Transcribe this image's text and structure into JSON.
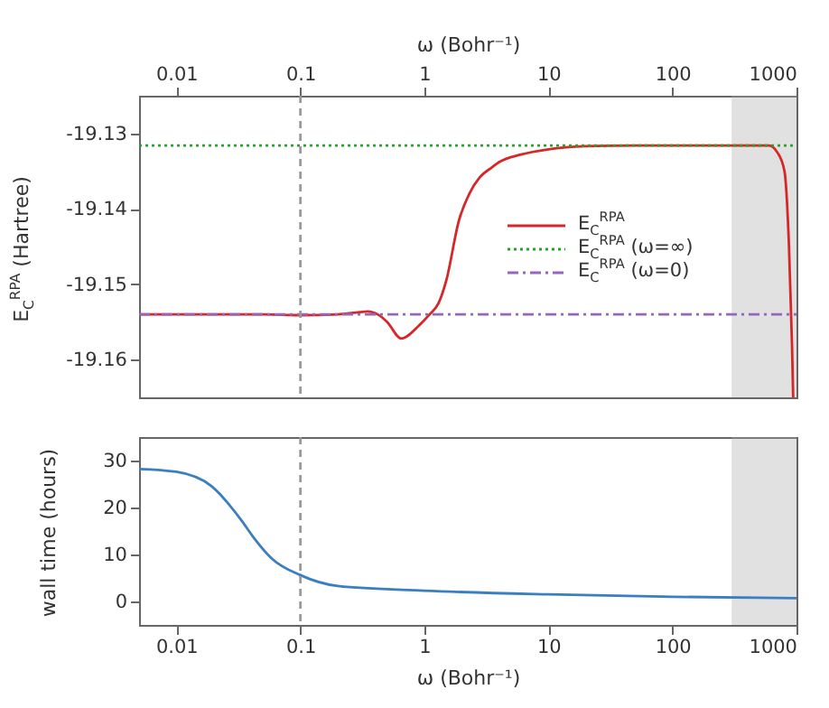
{
  "chart_data": [
    {
      "type": "line",
      "xlabel": "ω (Bohr⁻¹)",
      "ylabel": "E$_{C}$$^{RPA}$ (Hartree)",
      "xlim": [
        0.005,
        1000
      ],
      "xticks": [
        0.01,
        0.1,
        1,
        10,
        100,
        1000
      ],
      "log": "x",
      "ylim": [
        -19.165,
        -19.125
      ],
      "yticks": [
        -19.16,
        -19.15,
        -19.14,
        -19.13
      ],
      "grid": false,
      "legend": "right",
      "series": [
        {
          "name": "E$_{C}$$^{RPA}$",
          "color": "#d62728",
          "line_style": "solid",
          "x": [
            0.005,
            0.05,
            0.1,
            0.2,
            0.3,
            0.35,
            0.42,
            0.5,
            0.65,
            0.9,
            1.1,
            1.3,
            1.5,
            1.9,
            2.3,
            2.8,
            3.5,
            4,
            6,
            10,
            20,
            50,
            600,
            700,
            800,
            870,
            920,
            940
          ],
          "values": [
            -19.154,
            -19.154,
            -19.1541,
            -19.154,
            -19.1537,
            -19.1536,
            -19.154,
            -19.155,
            -19.1572,
            -19.1555,
            -19.154,
            -19.1525,
            -19.1495,
            -19.1415,
            -19.138,
            -19.1358,
            -19.1345,
            -19.1338,
            -19.1328,
            -19.1321,
            -19.1317,
            -19.1316,
            -19.1316,
            -19.1325,
            -19.135,
            -19.145,
            -19.158,
            -19.165
          ]
        },
        {
          "name": "E$_{C}$$^{RPA}$ (ω=∞)",
          "color": "#2ca02c",
          "line_style": "dotted",
          "x": [
            0.005,
            1000
          ],
          "values": [
            -19.1316,
            -19.1316
          ]
        },
        {
          "name": "E$_{C}$$^{RPA}$ (ω=0)",
          "color": "#9467bd",
          "line_style": "dashed",
          "x": [
            0.005,
            1000
          ],
          "values": [
            -19.154,
            -19.154
          ]
        }
      ],
      "ref_lines": [
        {
          "axis": "x",
          "value": 0.1,
          "color": "#999999",
          "line_style": "dashed"
        }
      ],
      "bands": [
        {
          "axis": "x",
          "from": 300,
          "to": 1000,
          "color": "#aaaaaa"
        }
      ]
    },
    {
      "type": "line",
      "xlabel": "ω (Bohr⁻¹)",
      "ylabel": "wall time (hours)",
      "xlim": [
        0.005,
        1000
      ],
      "xticks": [
        0.01,
        0.1,
        1,
        10,
        100,
        1000
      ],
      "log": "x",
      "ylim": [
        -5,
        35
      ],
      "yticks": [
        0,
        10,
        20,
        30
      ],
      "grid": false,
      "series": [
        {
          "color": "#3a7fbf",
          "line_style": "solid",
          "x": [
            0.005,
            0.01,
            0.0193,
            0.0336,
            0.042,
            0.059,
            0.1,
            0.2,
            1,
            10,
            100,
            1000
          ],
          "values": [
            28.2,
            27.6,
            24.5,
            17.2,
            13.6,
            9.1,
            5.6,
            3.3,
            2.3,
            1.5,
            1.0,
            0.7
          ]
        }
      ],
      "ref_lines": [
        {
          "axis": "x",
          "value": 0.1,
          "color": "#999999",
          "line_style": "dashed"
        }
      ],
      "bands": [
        {
          "axis": "x",
          "from": 300,
          "to": 1000,
          "color": "#aaaaaa"
        }
      ]
    }
  ]
}
